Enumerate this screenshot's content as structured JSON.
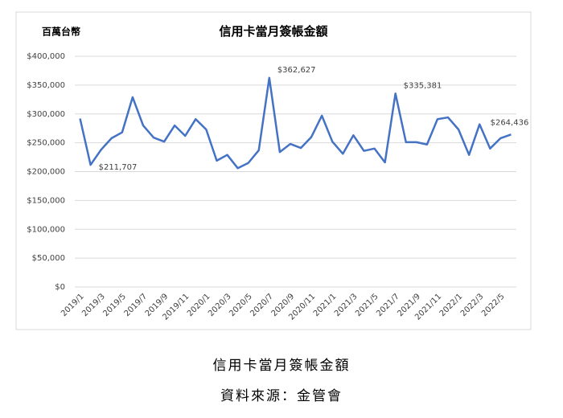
{
  "chart_data": {
    "type": "line",
    "title": "信用卡當月簽帳金額",
    "unit_label": "百萬台幣",
    "categories": [
      "2019/1",
      null,
      "2019/3",
      null,
      "2019/5",
      null,
      "2019/7",
      null,
      "2019/9",
      null,
      "2019/11",
      null,
      "2020/1",
      null,
      "2020/3",
      null,
      "2020/5",
      null,
      "2020/7",
      null,
      "2020/9",
      null,
      "2020/11",
      null,
      "2021/1",
      null,
      "2021/3",
      null,
      "2021/5",
      null,
      "2021/7",
      null,
      "2021/9",
      null,
      "2021/11",
      null,
      "2022/1",
      null,
      "2022/3",
      null,
      "2022/5",
      null
    ],
    "series": [
      {
        "color": "#4472c4",
        "values": [
          292000,
          211707,
          238000,
          258000,
          268000,
          329000,
          280000,
          259000,
          252000,
          280000,
          262000,
          291000,
          273000,
          219000,
          229000,
          206000,
          215000,
          237000,
          362627,
          234000,
          248000,
          241000,
          260000,
          297000,
          252000,
          231000,
          263000,
          236000,
          240000,
          216000,
          335381,
          251000,
          251000,
          247000,
          291000,
          294000,
          273000,
          229000,
          282000,
          240000,
          258000,
          264436
        ],
        "value_labels": [
          null,
          "$211,707",
          null,
          null,
          null,
          null,
          null,
          null,
          null,
          null,
          null,
          null,
          null,
          null,
          null,
          null,
          null,
          null,
          "$362,627",
          null,
          null,
          null,
          null,
          null,
          null,
          null,
          null,
          null,
          null,
          null,
          "$335,381",
          null,
          null,
          null,
          null,
          null,
          null,
          null,
          null,
          null,
          null,
          "$264,436"
        ]
      }
    ],
    "ylim": [
      0,
      400000
    ],
    "yticks": [
      {
        "value": 0,
        "label": "$0"
      },
      {
        "value": 50000,
        "label": "$50,000"
      },
      {
        "value": 100000,
        "label": "$100,000"
      },
      {
        "value": 150000,
        "label": "$150,000"
      },
      {
        "value": 200000,
        "label": "$200,000"
      },
      {
        "value": 250000,
        "label": "$250,000"
      },
      {
        "value": 300000,
        "label": "$300,000"
      },
      {
        "value": 350000,
        "label": "$350,000"
      },
      {
        "value": 400000,
        "label": "$400,000"
      }
    ],
    "grid": true
  },
  "caption": {
    "line1": "信用卡當月簽帳金額",
    "line2": "資料來源：金管會"
  }
}
